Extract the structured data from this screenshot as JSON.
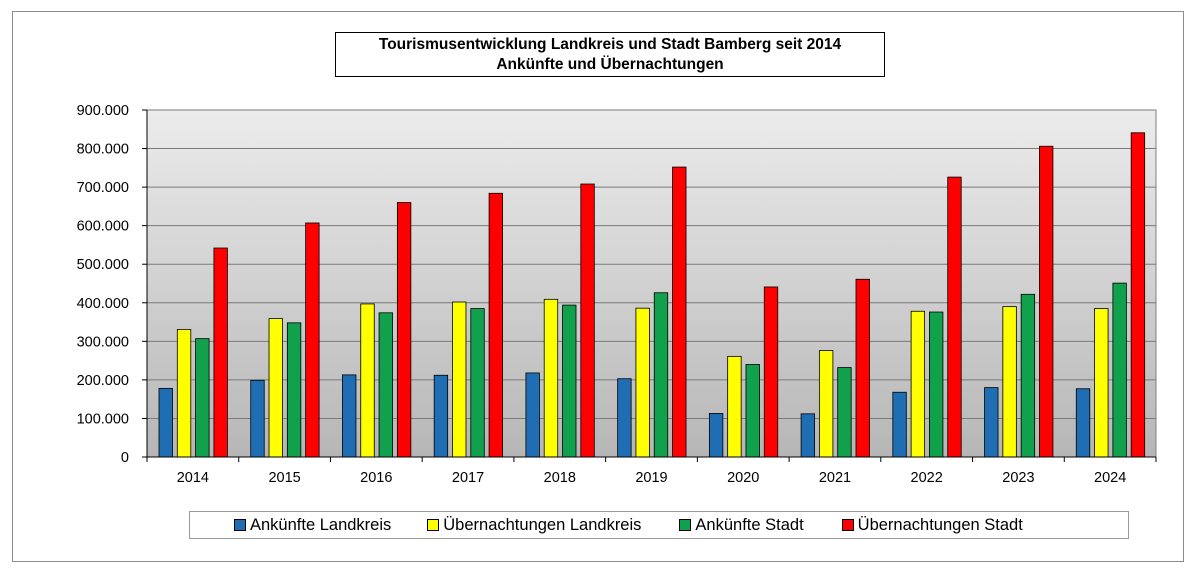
{
  "chart_data": {
    "type": "bar",
    "title": "Tourismusentwicklung Landkreis und Stadt Bamberg seit 2014",
    "subtitle": "Ankünfte und Übernachtungen",
    "categories": [
      "2014",
      "2015",
      "2016",
      "2017",
      "2018",
      "2019",
      "2020",
      "2021",
      "2022",
      "2023",
      "2024"
    ],
    "ylim": [
      0,
      900000
    ],
    "yticks": [
      "0",
      "100.000",
      "200.000",
      "300.000",
      "400.000",
      "500.000",
      "600.000",
      "700.000",
      "800.000",
      "900.000"
    ],
    "grid": true,
    "legend_position": "bottom",
    "series": [
      {
        "name": "Ankünfte Landkreis",
        "color": "#1f6eb4",
        "values": [
          178000,
          199000,
          213000,
          212000,
          218000,
          203000,
          113000,
          112000,
          168000,
          180000,
          177000
        ]
      },
      {
        "name": "Übernachtungen Landkreis",
        "color": "#ffff00",
        "values": [
          331000,
          359000,
          397000,
          402000,
          409000,
          386000,
          261000,
          276000,
          378000,
          390000,
          385000
        ]
      },
      {
        "name": "Ankünfte Stadt",
        "color": "#11a04b",
        "values": [
          307000,
          348000,
          374000,
          385000,
          394000,
          426000,
          240000,
          232000,
          376000,
          422000,
          451000
        ]
      },
      {
        "name": "Übernachtungen Stadt",
        "color": "#ff0000",
        "values": [
          542000,
          607000,
          660000,
          684000,
          708000,
          752000,
          441000,
          461000,
          726000,
          806000,
          841000
        ]
      }
    ]
  }
}
